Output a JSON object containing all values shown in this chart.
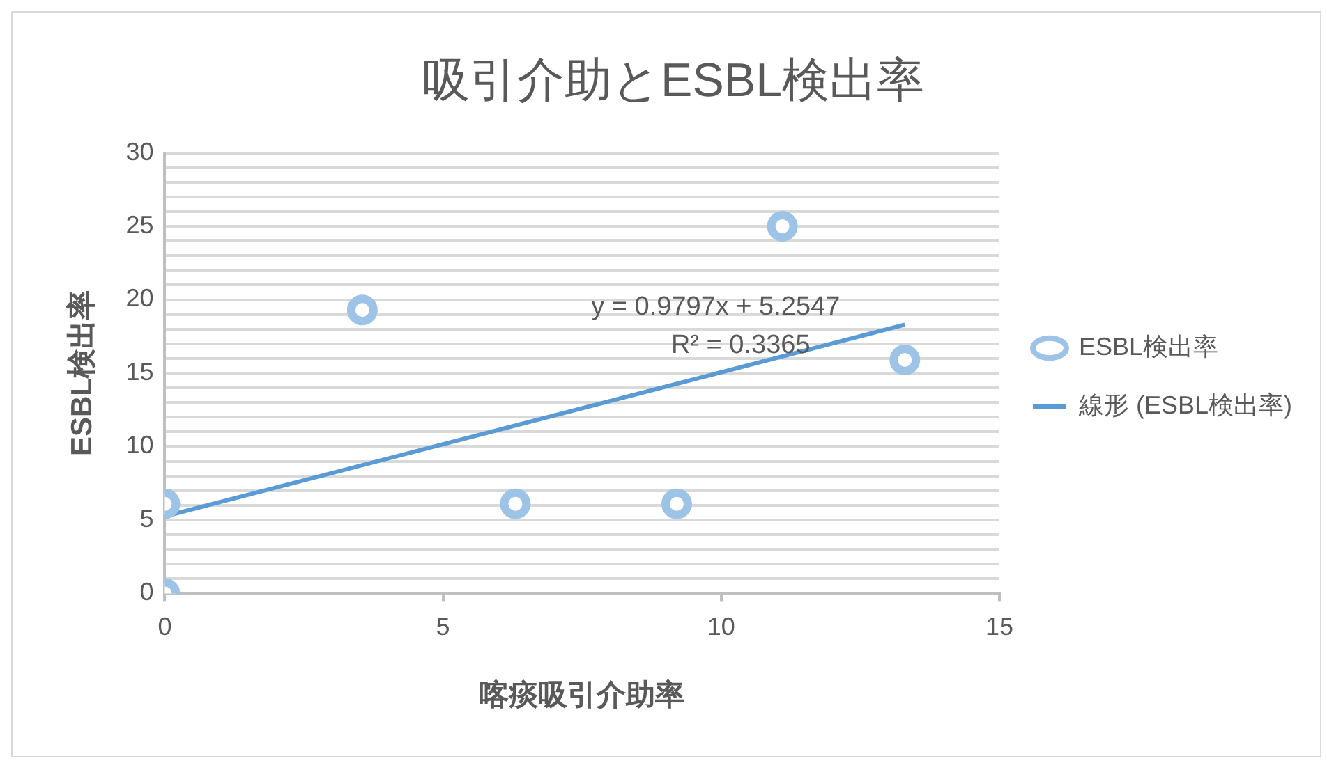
{
  "chart_data": {
    "type": "scatter",
    "title": "吸引介助とESBL検出率",
    "xlabel": "喀痰吸引介助率",
    "ylabel": "ESBL検出率",
    "x": [
      0,
      0,
      3.55,
      6.3,
      9.2,
      11.1,
      13.3
    ],
    "series": [
      {
        "name": "ESBL検出率",
        "color": "#9dc3e6",
        "values": [
          0,
          6.1,
          19.3,
          6.1,
          6.1,
          25,
          15.9
        ],
        "marker": "circle"
      },
      {
        "name": "線形 (ESBL検出率)",
        "type": "line",
        "color": "#5b9bd5",
        "x": [
          0,
          13.3
        ],
        "values": [
          5.25,
          18.3
        ],
        "marker": "none",
        "line_style": "solid"
      }
    ],
    "annotations": [
      "y = 0.9797x + 5.2547",
      "R² = 0.3365"
    ],
    "xlim": [
      0,
      15
    ],
    "xticks": [
      0,
      5,
      10,
      15
    ],
    "ylim": [
      0,
      30
    ],
    "yticks": [
      0,
      {
        "value": 1,
        "label": null
      },
      {
        "value": 2,
        "label": null
      },
      {
        "value": 3,
        "label": null
      },
      {
        "value": 4,
        "label": null
      },
      5,
      {
        "value": 6,
        "label": null
      },
      {
        "value": 7,
        "label": null
      },
      {
        "value": 8,
        "label": null
      },
      {
        "value": 9,
        "label": null
      },
      10,
      {
        "value": 11,
        "label": null
      },
      {
        "value": 12,
        "label": null
      },
      {
        "value": 13,
        "label": null
      },
      {
        "value": 14,
        "label": null
      },
      15,
      {
        "value": 16,
        "label": null
      },
      {
        "value": 17,
        "label": null
      },
      {
        "value": 18,
        "label": null
      },
      {
        "value": 19,
        "label": null
      },
      20,
      {
        "value": 21,
        "label": null
      },
      {
        "value": 22,
        "label": null
      },
      {
        "value": 23,
        "label": null
      },
      {
        "value": 24,
        "label": null
      },
      25,
      {
        "value": 26,
        "label": null
      },
      {
        "value": 27,
        "label": null
      },
      {
        "value": 28,
        "label": null
      },
      {
        "value": 29,
        "label": null
      },
      30
    ],
    "grid": "y",
    "legend": "right"
  }
}
